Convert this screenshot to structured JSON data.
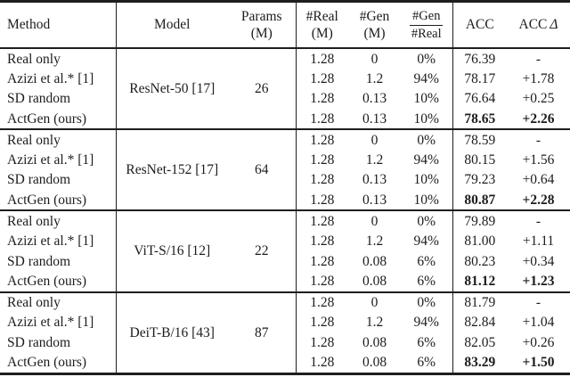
{
  "page": {
    "background": "#ffffff",
    "text_color": "#1c1c1c",
    "rule_color": "#1e1e1e"
  },
  "table": {
    "headers": {
      "method": "Method",
      "model": "Model",
      "params_line1": "Params",
      "params_line2": "(M)",
      "real_line1": "#Real",
      "real_line2": "(M)",
      "gen_line1": "#Gen",
      "gen_line2": "(M)",
      "ratio_numerator": "#Gen",
      "ratio_denominator": "#Real",
      "acc": "ACC",
      "acc_delta": {
        "text": "ACC",
        "symbol": "Δ"
      }
    },
    "blocks": [
      {
        "model": "ResNet-50 [17]",
        "params": "26",
        "rows": [
          {
            "method": "Real only",
            "real": "1.28",
            "gen": "0",
            "ratio": "0%",
            "acc": "76.39",
            "delta": "-",
            "highlight": false
          },
          {
            "method": "Azizi et al.* [1]",
            "real": "1.28",
            "gen": "1.2",
            "ratio": "94%",
            "acc": "78.17",
            "delta": "+1.78",
            "highlight": false
          },
          {
            "method": "SD random",
            "real": "1.28",
            "gen": "0.13",
            "ratio": "10%",
            "acc": "76.64",
            "delta": "+0.25",
            "highlight": false
          },
          {
            "method": "ActGen (ours)",
            "real": "1.28",
            "gen": "0.13",
            "ratio": "10%",
            "acc": "78.65",
            "delta": "+2.26",
            "highlight": true
          }
        ]
      },
      {
        "model": "ResNet-152 [17]",
        "params": "64",
        "rows": [
          {
            "method": "Real only",
            "real": "1.28",
            "gen": "0",
            "ratio": "0%",
            "acc": "78.59",
            "delta": "-",
            "highlight": false
          },
          {
            "method": "Azizi et al.* [1]",
            "real": "1.28",
            "gen": "1.2",
            "ratio": "94%",
            "acc": "80.15",
            "delta": "+1.56",
            "highlight": false
          },
          {
            "method": "SD random",
            "real": "1.28",
            "gen": "0.13",
            "ratio": "10%",
            "acc": "79.23",
            "delta": "+0.64",
            "highlight": false
          },
          {
            "method": "ActGen (ours)",
            "real": "1.28",
            "gen": "0.13",
            "ratio": "10%",
            "acc": "80.87",
            "delta": "+2.28",
            "highlight": true
          }
        ]
      },
      {
        "model": "ViT-S/16 [12]",
        "params": "22",
        "rows": [
          {
            "method": "Real only",
            "real": "1.28",
            "gen": "0",
            "ratio": "0%",
            "acc": "79.89",
            "delta": "-",
            "highlight": false
          },
          {
            "method": "Azizi et al.* [1]",
            "real": "1.28",
            "gen": "1.2",
            "ratio": "94%",
            "acc": "81.00",
            "delta": "+1.11",
            "highlight": false
          },
          {
            "method": "SD random",
            "real": "1.28",
            "gen": "0.08",
            "ratio": "6%",
            "acc": "80.23",
            "delta": "+0.34",
            "highlight": false
          },
          {
            "method": "ActGen (ours)",
            "real": "1.28",
            "gen": "0.08",
            "ratio": "6%",
            "acc": "81.12",
            "delta": "+1.23",
            "highlight": true
          }
        ]
      },
      {
        "model": "DeiT-B/16 [43]",
        "params": "87",
        "rows": [
          {
            "method": "Real only",
            "real": "1.28",
            "gen": "0",
            "ratio": "0%",
            "acc": "81.79",
            "delta": "-",
            "highlight": false
          },
          {
            "method": "Azizi et al.* [1]",
            "real": "1.28",
            "gen": "1.2",
            "ratio": "94%",
            "acc": "82.84",
            "delta": "+1.04",
            "highlight": false
          },
          {
            "method": "SD random",
            "real": "1.28",
            "gen": "0.08",
            "ratio": "6%",
            "acc": "82.05",
            "delta": "+0.26",
            "highlight": false
          },
          {
            "method": "ActGen (ours)",
            "real": "1.28",
            "gen": "0.08",
            "ratio": "6%",
            "acc": "83.29",
            "delta": "+1.50",
            "highlight": true
          }
        ]
      }
    ]
  }
}
